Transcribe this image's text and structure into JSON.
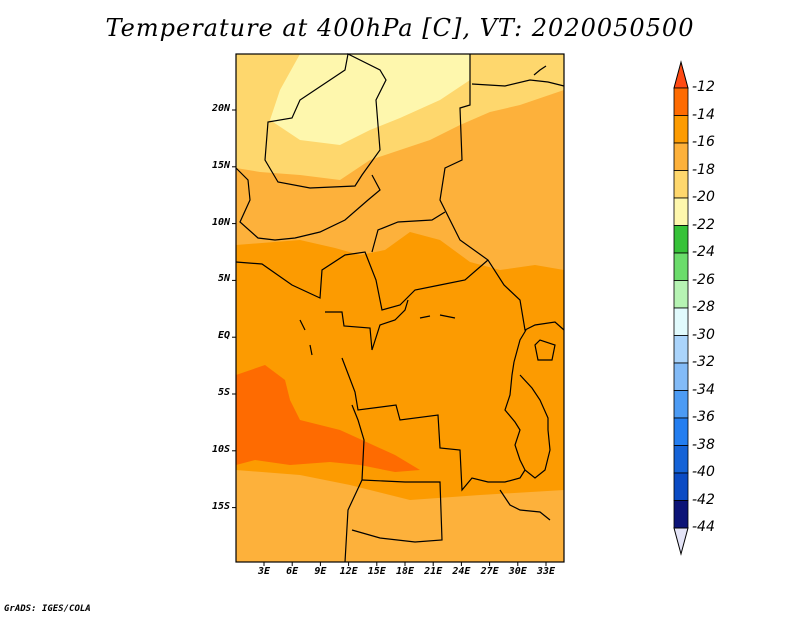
{
  "title": "Temperature at 400hPa [C], VT: 2020050500",
  "credit": "GrADS: IGES/COLA",
  "lat_labels": [
    "20N",
    "15N",
    "10N",
    "5N",
    "EQ",
    "5S",
    "10S",
    "15S"
  ],
  "lon_labels": [
    "3E",
    "6E",
    "9E",
    "12E",
    "15E",
    "18E",
    "21E",
    "24E",
    "27E",
    "30E",
    "33E"
  ],
  "colorbar": {
    "labels": [
      "-12",
      "-14",
      "-16",
      "-18",
      "-20",
      "-22",
      "-24",
      "-26",
      "-28",
      "-30",
      "-32",
      "-34",
      "-36",
      "-38",
      "-40",
      "-42",
      "-44"
    ],
    "colors": [
      "#ff4a13",
      "#fe6b01",
      "#fc9b01",
      "#fdb13b",
      "#fed76d",
      "#fef7ad",
      "#36c238",
      "#6bdc6b",
      "#b6f3b3",
      "#e1fafc",
      "#aad4fb",
      "#83bbf7",
      "#4c9bf4",
      "#247ef0",
      "#1563d7",
      "#0b4bc4",
      "#0c1477"
    ],
    "low_color": "#e4e4f7"
  }
}
